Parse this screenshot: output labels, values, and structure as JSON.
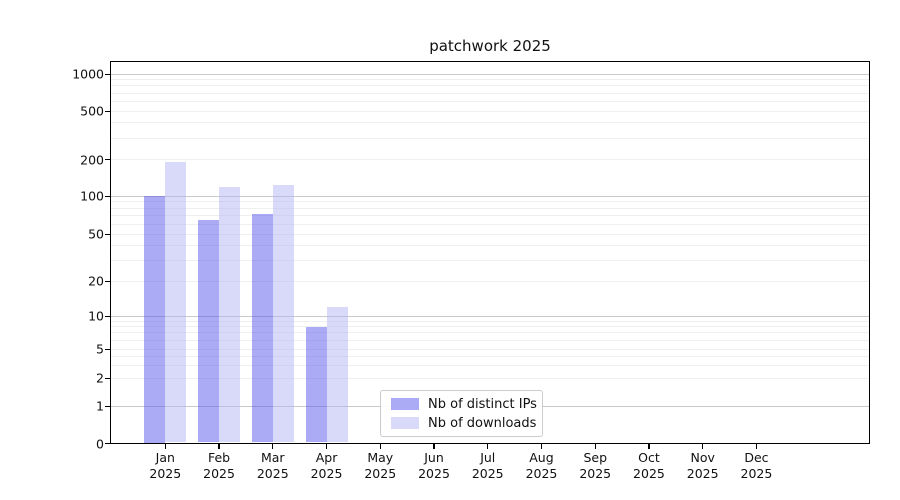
{
  "chart_data": {
    "type": "bar",
    "title": "patchwork 2025",
    "categories": [
      {
        "month": "Jan",
        "year": "2025"
      },
      {
        "month": "Feb",
        "year": "2025"
      },
      {
        "month": "Mar",
        "year": "2025"
      },
      {
        "month": "Apr",
        "year": "2025"
      },
      {
        "month": "May",
        "year": "2025"
      },
      {
        "month": "Jun",
        "year": "2025"
      },
      {
        "month": "Jul",
        "year": "2025"
      },
      {
        "month": "Aug",
        "year": "2025"
      },
      {
        "month": "Sep",
        "year": "2025"
      },
      {
        "month": "Oct",
        "year": "2025"
      },
      {
        "month": "Nov",
        "year": "2025"
      },
      {
        "month": "Dec",
        "year": "2025"
      }
    ],
    "series": [
      {
        "key": "distinct-ips",
        "name": "Nb of distinct IPs",
        "color_hex": "#5555eb",
        "alpha": 0.5,
        "values": [
          100,
          65,
          72,
          8,
          0,
          0,
          0,
          0,
          0,
          0,
          0,
          0
        ]
      },
      {
        "key": "downloads",
        "name": "Nb of downloads",
        "color_hex": "#b4b4f5",
        "alpha": 0.5,
        "values": [
          190,
          119,
          123,
          12,
          0,
          0,
          0,
          0,
          0,
          0,
          0,
          0
        ]
      }
    ],
    "yaxis": {
      "scale": "symlog",
      "ticks": [
        {
          "value": 0,
          "label": "0"
        },
        {
          "value": 1,
          "label": "1"
        },
        {
          "value": 2,
          "label": "2"
        },
        {
          "value": 5,
          "label": "5"
        },
        {
          "value": 10,
          "label": "10"
        },
        {
          "value": 20,
          "label": "20"
        },
        {
          "value": 50,
          "label": "50"
        },
        {
          "value": 100,
          "label": "100"
        },
        {
          "value": 200,
          "label": "200"
        },
        {
          "value": 500,
          "label": "500"
        },
        {
          "value": 1000,
          "label": "1000"
        }
      ],
      "ylim": [
        0,
        1300
      ]
    },
    "grid": {
      "major_color": "#c9c9c9",
      "minor_color": "#efefef",
      "orientation": "horizontal"
    },
    "legend": {
      "position": "lower-center",
      "items": [
        "Nb of distinct IPs",
        "Nb of downloads"
      ]
    }
  }
}
